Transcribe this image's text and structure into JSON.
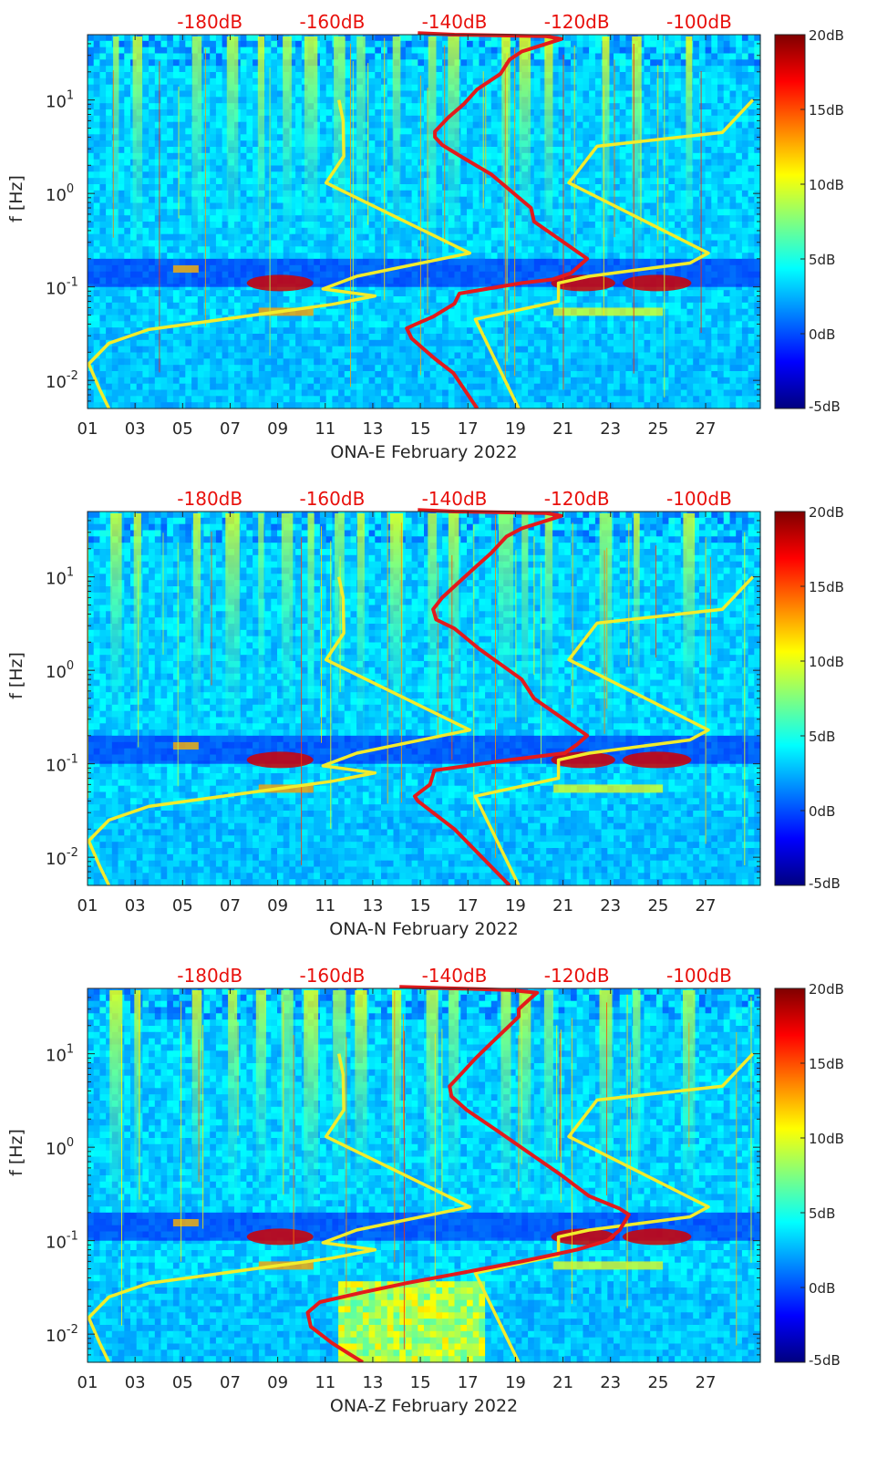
{
  "chart_data": [
    {
      "type": "heatmap",
      "xlabel": "ONA-E February 2022",
      "ylabel": "f [Hz]",
      "x_ticks": [
        "01",
        "03",
        "05",
        "07",
        "09",
        "11",
        "13",
        "15",
        "17",
        "19",
        "21",
        "23",
        "25",
        "27"
      ],
      "x_range_days": [
        1,
        29.3
      ],
      "y_scale": "log",
      "y_range_hz": [
        0.005,
        50
      ],
      "y_ticks": [
        {
          "base": "10",
          "exp": "1",
          "v": 10
        },
        {
          "base": "10",
          "exp": "0",
          "v": 1
        },
        {
          "base": "10",
          "exp": "-1",
          "v": 0.1
        },
        {
          "base": "10",
          "exp": "-2",
          "v": 0.01
        }
      ],
      "top_axis_ticks": [
        "-180dB",
        "-160dB",
        "-140dB",
        "-120dB",
        "-100dB"
      ],
      "top_axis_range_db": [
        -200,
        -90
      ],
      "colorbar": {
        "min_db": -5,
        "max_db": 20,
        "ticks": [
          "20dB",
          "15dB",
          "10dB",
          "5dB",
          "0dB",
          "-5dB"
        ]
      },
      "series": [
        {
          "color": "#f2ec2c",
          "axis": "top_db",
          "points": [
            [
              -158.9,
              10
            ],
            [
              -158.2,
              6
            ],
            [
              -158.1,
              2.5
            ],
            [
              -161,
              1.3
            ],
            [
              -137.5,
              0.23
            ],
            [
              -156,
              0.13
            ],
            [
              -161.5,
              0.095
            ],
            [
              -153,
              0.08
            ],
            [
              -160,
              0.065
            ],
            [
              -190,
              0.035
            ],
            [
              -196.5,
              0.025
            ],
            [
              -199.8,
              0.015
            ],
            [
              -198,
              0.008
            ],
            [
              -196.5,
              0.005
            ]
          ]
        },
        {
          "color": "#f2ec2c",
          "axis": "top_db",
          "points": [
            [
              -91.2,
              10
            ],
            [
              -96.2,
              4.5
            ],
            [
              -116.7,
              3.2
            ],
            [
              -121.3,
              1.3
            ],
            [
              -98.5,
              0.23
            ],
            [
              -101.5,
              0.18
            ],
            [
              -118,
              0.13
            ],
            [
              -123,
              0.11
            ],
            [
              -123,
              0.07
            ],
            [
              -136.6,
              0.045
            ],
            [
              -129.5,
              0.005
            ]
          ]
        },
        {
          "color": "#e31a1c",
          "axis": "top_db",
          "points": [
            [
              -136.3,
              0.005
            ],
            [
              -140.2,
              0.012
            ],
            [
              -143.2,
              0.017
            ],
            [
              -147,
              0.028
            ],
            [
              -147.8,
              0.036
            ],
            [
              -146.3,
              0.04
            ],
            [
              -143.5,
              0.048
            ],
            [
              -140,
              0.066
            ],
            [
              -139.2,
              0.085
            ],
            [
              -129,
              0.11
            ],
            [
              -124,
              0.12
            ],
            [
              -121,
              0.14
            ],
            [
              -118.3,
              0.2
            ],
            [
              -120,
              0.24
            ],
            [
              -127,
              0.5
            ],
            [
              -127.5,
              0.7
            ],
            [
              -134,
              1.6
            ],
            [
              -139,
              2.5
            ],
            [
              -142,
              3.3
            ],
            [
              -143.2,
              4
            ],
            [
              -143.2,
              4.6
            ],
            [
              -141,
              6.5
            ],
            [
              -138.5,
              9
            ],
            [
              -136.3,
              13
            ],
            [
              -132.5,
              19
            ],
            [
              -131,
              27
            ],
            [
              -129,
              33
            ],
            [
              -126,
              38
            ],
            [
              -122.5,
              45
            ],
            [
              -125,
              48
            ],
            [
              -140,
              50
            ],
            [
              -146,
              52
            ]
          ]
        }
      ]
    },
    {
      "type": "heatmap",
      "xlabel": "ONA-N February 2022",
      "ylabel": "f [Hz]",
      "x_ticks": [
        "01",
        "03",
        "05",
        "07",
        "09",
        "11",
        "13",
        "15",
        "17",
        "19",
        "21",
        "23",
        "25",
        "27"
      ],
      "x_range_days": [
        1,
        29.3
      ],
      "y_scale": "log",
      "y_range_hz": [
        0.005,
        50
      ],
      "y_ticks": [
        {
          "base": "10",
          "exp": "1",
          "v": 10
        },
        {
          "base": "10",
          "exp": "0",
          "v": 1
        },
        {
          "base": "10",
          "exp": "-1",
          "v": 0.1
        },
        {
          "base": "10",
          "exp": "-2",
          "v": 0.01
        }
      ],
      "top_axis_ticks": [
        "-180dB",
        "-160dB",
        "-140dB",
        "-120dB",
        "-100dB"
      ],
      "top_axis_range_db": [
        -200,
        -90
      ],
      "colorbar": {
        "min_db": -5,
        "max_db": 20,
        "ticks": [
          "20dB",
          "15dB",
          "10dB",
          "5dB",
          "0dB",
          "-5dB"
        ]
      },
      "series": [
        {
          "color": "#f2ec2c",
          "axis": "top_db",
          "points": [
            [
              -158.9,
              10
            ],
            [
              -158.2,
              6
            ],
            [
              -158.1,
              2.5
            ],
            [
              -161,
              1.3
            ],
            [
              -137.5,
              0.23
            ],
            [
              -156,
              0.13
            ],
            [
              -161.5,
              0.095
            ],
            [
              -153,
              0.08
            ],
            [
              -160,
              0.065
            ],
            [
              -190,
              0.035
            ],
            [
              -196.5,
              0.025
            ],
            [
              -199.8,
              0.015
            ],
            [
              -198,
              0.008
            ],
            [
              -196.5,
              0.005
            ]
          ]
        },
        {
          "color": "#f2ec2c",
          "axis": "top_db",
          "points": [
            [
              -91.2,
              10
            ],
            [
              -96.2,
              4.5
            ],
            [
              -116.7,
              3.2
            ],
            [
              -121.3,
              1.3
            ],
            [
              -98.5,
              0.23
            ],
            [
              -101.5,
              0.18
            ],
            [
              -118,
              0.13
            ],
            [
              -123,
              0.11
            ],
            [
              -123,
              0.07
            ],
            [
              -136.6,
              0.045
            ],
            [
              -129.5,
              0.005
            ]
          ]
        },
        {
          "color": "#e31a1c",
          "axis": "top_db",
          "points": [
            [
              -131,
              0.005
            ],
            [
              -135.5,
              0.01
            ],
            [
              -140,
              0.02
            ],
            [
              -146,
              0.04
            ],
            [
              -146.5,
              0.045
            ],
            [
              -144,
              0.06
            ],
            [
              -143.3,
              0.085
            ],
            [
              -131,
              0.11
            ],
            [
              -122,
              0.13
            ],
            [
              -120,
              0.16
            ],
            [
              -118.3,
              0.2
            ],
            [
              -120,
              0.24
            ],
            [
              -127,
              0.5
            ],
            [
              -129,
              0.8
            ],
            [
              -136,
              1.7
            ],
            [
              -140,
              2.8
            ],
            [
              -143,
              3.5
            ],
            [
              -143.5,
              4.5
            ],
            [
              -142,
              6
            ],
            [
              -139.5,
              8.5
            ],
            [
              -137,
              12
            ],
            [
              -134,
              18
            ],
            [
              -131.5,
              27
            ],
            [
              -129,
              33
            ],
            [
              -126,
              38
            ],
            [
              -122.5,
              45
            ],
            [
              -125,
              48
            ],
            [
              -140,
              50
            ],
            [
              -146,
              52
            ]
          ]
        }
      ]
    },
    {
      "type": "heatmap",
      "xlabel": "ONA-Z February 2022",
      "ylabel": "f [Hz]",
      "x_ticks": [
        "01",
        "03",
        "05",
        "07",
        "09",
        "11",
        "13",
        "15",
        "17",
        "19",
        "21",
        "23",
        "25",
        "27"
      ],
      "x_range_days": [
        1,
        29.3
      ],
      "y_scale": "log",
      "y_range_hz": [
        0.005,
        50
      ],
      "y_ticks": [
        {
          "base": "10",
          "exp": "1",
          "v": 10
        },
        {
          "base": "10",
          "exp": "0",
          "v": 1
        },
        {
          "base": "10",
          "exp": "-1",
          "v": 0.1
        },
        {
          "base": "10",
          "exp": "-2",
          "v": 0.01
        }
      ],
      "top_axis_ticks": [
        "-180dB",
        "-160dB",
        "-140dB",
        "-120dB",
        "-100dB"
      ],
      "top_axis_range_db": [
        -200,
        -90
      ],
      "colorbar": {
        "min_db": -5,
        "max_db": 20,
        "ticks": [
          "20dB",
          "15dB",
          "10dB",
          "5dB",
          "0dB",
          "-5dB"
        ]
      },
      "series": [
        {
          "color": "#f2ec2c",
          "axis": "top_db",
          "points": [
            [
              -158.9,
              10
            ],
            [
              -158.2,
              6
            ],
            [
              -158.1,
              2.5
            ],
            [
              -161,
              1.3
            ],
            [
              -137.5,
              0.23
            ],
            [
              -156,
              0.13
            ],
            [
              -161.5,
              0.095
            ],
            [
              -153,
              0.08
            ],
            [
              -160,
              0.065
            ],
            [
              -190,
              0.035
            ],
            [
              -196.5,
              0.025
            ],
            [
              -199.8,
              0.015
            ],
            [
              -198,
              0.008
            ],
            [
              -196.5,
              0.005
            ]
          ]
        },
        {
          "color": "#f2ec2c",
          "axis": "top_db",
          "points": [
            [
              -91.2,
              10
            ],
            [
              -96.2,
              4.5
            ],
            [
              -116.7,
              3.2
            ],
            [
              -121.3,
              1.3
            ],
            [
              -98.5,
              0.23
            ],
            [
              -101.5,
              0.18
            ],
            [
              -118,
              0.13
            ],
            [
              -123,
              0.11
            ],
            [
              -123,
              0.07
            ],
            [
              -136.6,
              0.045
            ],
            [
              -129.5,
              0.005
            ]
          ]
        },
        {
          "color": "#e31a1c",
          "axis": "top_db",
          "points": [
            [
              -155,
              0.005
            ],
            [
              -160,
              0.008
            ],
            [
              -163.5,
              0.012
            ],
            [
              -164,
              0.017
            ],
            [
              -162,
              0.022
            ],
            [
              -155,
              0.028
            ],
            [
              -148,
              0.035
            ],
            [
              -139,
              0.045
            ],
            [
              -129,
              0.06
            ],
            [
              -120,
              0.08
            ],
            [
              -115,
              0.1
            ],
            [
              -113,
              0.13
            ],
            [
              -111.5,
              0.19
            ],
            [
              -113,
              0.22
            ],
            [
              -118,
              0.3
            ],
            [
              -122.5,
              0.5
            ],
            [
              -127,
              0.8
            ],
            [
              -133,
              1.5
            ],
            [
              -138,
              2.5
            ],
            [
              -140.5,
              3.5
            ],
            [
              -140.8,
              4.5
            ],
            [
              -139,
              6
            ],
            [
              -136.5,
              9
            ],
            [
              -133.5,
              14
            ],
            [
              -131,
              20
            ],
            [
              -129.5,
              25
            ],
            [
              -129.5,
              30
            ],
            [
              -128,
              37
            ],
            [
              -126.5,
              45
            ],
            [
              -131,
              48
            ],
            [
              -140,
              50
            ],
            [
              -149,
              52
            ]
          ]
        }
      ]
    }
  ]
}
